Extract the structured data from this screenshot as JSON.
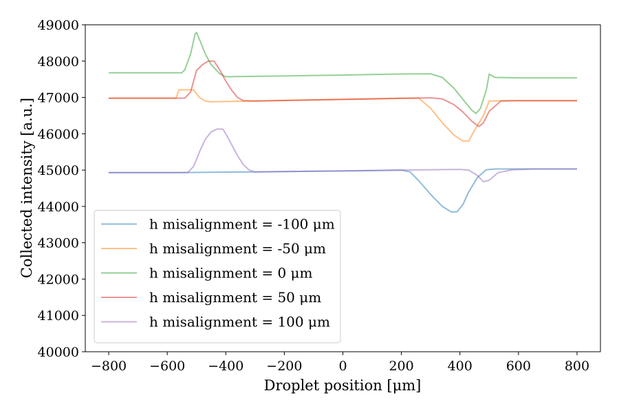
{
  "chart_data": {
    "type": "line",
    "title": "",
    "xlabel": "Droplet position [μm]",
    "ylabel": "Collected intensity [a.u.]",
    "xlim": [
      -880,
      880
    ],
    "ylim": [
      40000,
      49000
    ],
    "xticks": [
      -800,
      -600,
      -400,
      -200,
      0,
      200,
      400,
      600,
      800
    ],
    "xtick_labels": [
      "−800",
      "−600",
      "−400",
      "−200",
      "0",
      "200",
      "400",
      "600",
      "800"
    ],
    "yticks": [
      40000,
      41000,
      42000,
      43000,
      44000,
      45000,
      46000,
      47000,
      48000,
      49000
    ],
    "ytick_labels": [
      "40000",
      "41000",
      "42000",
      "43000",
      "44000",
      "45000",
      "46000",
      "47000",
      "48000",
      "49000"
    ],
    "grid": false,
    "legend_position": "lower-left",
    "series": [
      {
        "name": "h misalignment = -100 μm",
        "color": "#1f77b4",
        "x": [
          -800,
          -700,
          -600,
          -500,
          -400,
          -300,
          -200,
          -100,
          0,
          100,
          200,
          230,
          260,
          300,
          340,
          370,
          390,
          410,
          430,
          460,
          490,
          520,
          600,
          700,
          800
        ],
        "y": [
          44930,
          44930,
          44930,
          44935,
          44945,
          44950,
          44960,
          44970,
          44975,
          44985,
          45000,
          44950,
          44700,
          44330,
          44000,
          43850,
          43850,
          44050,
          44400,
          44800,
          45010,
          45030,
          45030,
          45030,
          45030
        ]
      },
      {
        "name": "h misalignment = -50 μm",
        "color": "#ff7f0e",
        "x": [
          -800,
          -700,
          -600,
          -570,
          -560,
          -520,
          -510,
          -490,
          -470,
          -450,
          -400,
          -300,
          -200,
          -100,
          0,
          100,
          200,
          260,
          300,
          340,
          380,
          410,
          430,
          450,
          480,
          500,
          550,
          600,
          700,
          800
        ],
        "y": [
          46980,
          46980,
          46980,
          46980,
          47210,
          47210,
          47210,
          47000,
          46900,
          46880,
          46890,
          46900,
          46920,
          46935,
          46950,
          46965,
          46980,
          46980,
          46700,
          46300,
          45960,
          45800,
          45800,
          46100,
          46500,
          46900,
          46910,
          46910,
          46910,
          46910
        ]
      },
      {
        "name": "h misalignment = 0 μm",
        "color": "#2ca02c",
        "x": [
          -800,
          -700,
          -600,
          -550,
          -540,
          -520,
          -505,
          -500,
          -490,
          -470,
          -450,
          -420,
          -400,
          -300,
          -200,
          -100,
          0,
          100,
          200,
          300,
          340,
          380,
          410,
          440,
          455,
          470,
          490,
          500,
          520,
          600,
          700,
          800
        ],
        "y": [
          47680,
          47680,
          47680,
          47680,
          47760,
          48200,
          48740,
          48790,
          48600,
          48200,
          47900,
          47650,
          47570,
          47580,
          47590,
          47605,
          47615,
          47630,
          47645,
          47650,
          47550,
          47250,
          46950,
          46650,
          46560,
          46700,
          47200,
          47640,
          47550,
          47540,
          47540,
          47540
        ]
      },
      {
        "name": "h misalignment = 50 μm",
        "color": "#d62728",
        "x": [
          -800,
          -700,
          -600,
          -540,
          -520,
          -510,
          -500,
          -480,
          -460,
          -440,
          -420,
          -400,
          -380,
          -360,
          -340,
          -300,
          -200,
          -100,
          0,
          100,
          200,
          300,
          340,
          380,
          410,
          440,
          465,
          480,
          500,
          540,
          600,
          700,
          800
        ],
        "y": [
          46980,
          46980,
          46980,
          46980,
          47150,
          47450,
          47740,
          47900,
          48000,
          48000,
          47750,
          47450,
          47200,
          47000,
          46910,
          46900,
          46915,
          46930,
          46945,
          46960,
          46975,
          46990,
          46960,
          46800,
          46600,
          46350,
          46200,
          46300,
          46620,
          46900,
          46910,
          46910,
          46910
        ]
      },
      {
        "name": "h misalignment = 100 μm",
        "color": "#9467bd",
        "x": [
          -800,
          -700,
          -600,
          -530,
          -510,
          -490,
          -470,
          -450,
          -430,
          -410,
          -400,
          -380,
          -360,
          -340,
          -320,
          -300,
          -200,
          -100,
          0,
          100,
          200,
          300,
          400,
          430,
          460,
          480,
          500,
          530,
          580,
          650,
          700,
          800
        ],
        "y": [
          44930,
          44930,
          44930,
          44930,
          45100,
          45500,
          45850,
          46050,
          46130,
          46130,
          46000,
          45700,
          45400,
          45150,
          45000,
          44950,
          44960,
          44970,
          44980,
          44990,
          45000,
          45010,
          45020,
          45000,
          44850,
          44680,
          44720,
          44930,
          45010,
          45030,
          45030,
          45030
        ]
      }
    ]
  }
}
